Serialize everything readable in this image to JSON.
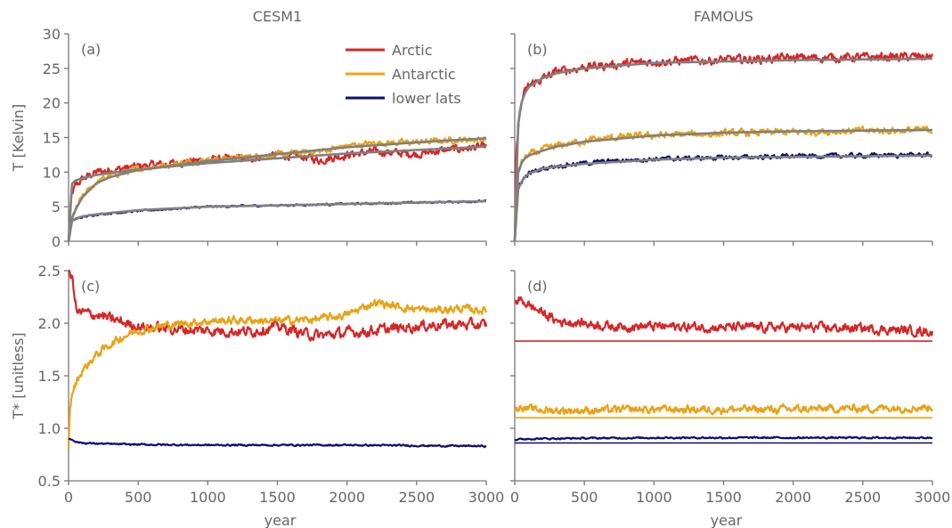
{
  "colors": {
    "arctic": "#d62728",
    "antarctic": "#e8a317",
    "lower_lats": "#0d0d73",
    "fit": "#808080",
    "axis": "#777777"
  },
  "legend": {
    "placement": "top-right of panel (a)",
    "entries": [
      {
        "label": "Arctic",
        "color_key": "arctic"
      },
      {
        "label": "Antarctic",
        "color_key": "antarctic"
      },
      {
        "label": "lower lats",
        "color_key": "lower_lats"
      }
    ]
  },
  "chart_data": [
    {
      "type": "line",
      "panel": "(a)",
      "title": "CESM1",
      "xlabel": "",
      "ylabel": "T  [Kelvin]",
      "xlim": [
        0,
        3000
      ],
      "ylim": [
        0,
        30
      ],
      "xticks": [
        0,
        500,
        1000,
        1500,
        2000,
        2500,
        3000
      ],
      "yticks": [
        0,
        5,
        10,
        15,
        20,
        25,
        30
      ],
      "series": [
        {
          "name": "Arctic",
          "color_key": "arctic",
          "noise": 0.45,
          "x": [
            0,
            20,
            50,
            100,
            200,
            300,
            500,
            700,
            1000,
            1300,
            1500,
            1700,
            1800,
            2000,
            2200,
            2500,
            2700,
            3000
          ],
          "y": [
            0,
            6.5,
            8,
            9,
            10,
            10.3,
            10.8,
            11.2,
            11.8,
            12,
            12.5,
            12.2,
            11.7,
            12.5,
            13,
            12.6,
            13.2,
            13.7
          ]
        },
        {
          "name": "Antarctic",
          "color_key": "antarctic",
          "noise": 0.35,
          "x": [
            0,
            20,
            50,
            100,
            200,
            300,
            500,
            700,
            1000,
            1300,
            1500,
            1800,
            2000,
            2200,
            2500,
            2700,
            3000
          ],
          "y": [
            0,
            3,
            4.5,
            6.5,
            8.5,
            9.5,
            10.5,
            11,
            11.8,
            12.2,
            12.5,
            13,
            13.8,
            14.2,
            14.3,
            14.6,
            14.8
          ]
        },
        {
          "name": "lower lats",
          "color_key": "lower_lats",
          "noise": 0.1,
          "x": [
            0,
            20,
            50,
            100,
            200,
            500,
            1000,
            1500,
            2000,
            2500,
            3000
          ],
          "y": [
            0,
            2.8,
            3.2,
            3.5,
            3.9,
            4.4,
            5,
            5.2,
            5.4,
            5.6,
            5.8
          ]
        },
        {
          "name": "",
          "color_key": "fit",
          "fit": true,
          "x": [
            0,
            10,
            30,
            60,
            100,
            200,
            500,
            1000,
            1500,
            2000,
            2500,
            3000
          ],
          "y": [
            0,
            7.5,
            8.6,
            8.9,
            9.1,
            9.6,
            10.4,
            11.3,
            12,
            12.7,
            13.2,
            13.7
          ]
        },
        {
          "name": "",
          "color_key": "fit",
          "fit": true,
          "x": [
            0,
            20,
            50,
            100,
            200,
            300,
            500,
            1000,
            1500,
            2000,
            2500,
            3000
          ],
          "y": [
            0,
            3,
            4.6,
            6.4,
            8.4,
            9.3,
            10.3,
            11.6,
            12.6,
            13.6,
            14.3,
            14.9
          ]
        },
        {
          "name": "",
          "color_key": "fit",
          "fit": true,
          "x": [
            0,
            20,
            50,
            100,
            200,
            500,
            1000,
            1500,
            2000,
            2500,
            3000
          ],
          "y": [
            0,
            2.9,
            3.3,
            3.6,
            3.9,
            4.5,
            5,
            5.2,
            5.4,
            5.6,
            5.8
          ]
        }
      ]
    },
    {
      "type": "line",
      "panel": "(b)",
      "title": "FAMOUS",
      "xlabel": "",
      "ylabel": "",
      "xlim": [
        0,
        3000
      ],
      "ylim": [
        0,
        30
      ],
      "xticks": [
        0,
        500,
        1000,
        1500,
        2000,
        2500,
        3000
      ],
      "yticks": [
        0,
        5,
        10,
        15,
        20,
        25,
        30
      ],
      "series": [
        {
          "name": "Arctic",
          "color_key": "arctic",
          "noise": 0.5,
          "x": [
            0,
            10,
            30,
            60,
            100,
            200,
            300,
            500,
            700,
            1000,
            1500,
            2000,
            2500,
            3000
          ],
          "y": [
            0,
            12,
            18,
            21,
            22.5,
            23.5,
            24.5,
            25.2,
            25.5,
            26,
            26.2,
            26.5,
            26.6,
            26.7
          ]
        },
        {
          "name": "Antarctic",
          "color_key": "antarctic",
          "noise": 0.4,
          "x": [
            0,
            10,
            30,
            60,
            100,
            200,
            300,
            500,
            700,
            1000,
            1500,
            2000,
            2500,
            3000
          ],
          "y": [
            0,
            8,
            10.5,
            11.8,
            12.5,
            13.2,
            13.8,
            14.5,
            15,
            15.3,
            15.6,
            15.8,
            16,
            16.1
          ]
        },
        {
          "name": "lower lats",
          "color_key": "lower_lats",
          "noise": 0.25,
          "x": [
            0,
            10,
            30,
            60,
            100,
            200,
            300,
            500,
            700,
            1000,
            1500,
            2000,
            2500,
            3000
          ],
          "y": [
            0,
            6,
            8,
            9,
            9.8,
            10.5,
            10.9,
            11.3,
            11.6,
            11.9,
            12.1,
            12.3,
            12.4,
            12.5
          ]
        },
        {
          "name": "",
          "color_key": "fit",
          "fit": true,
          "x": [
            0,
            10,
            30,
            60,
            100,
            200,
            300,
            500,
            1000,
            1500,
            2000,
            2500,
            3000
          ],
          "y": [
            0,
            12,
            18.5,
            21,
            22.3,
            23.6,
            24.3,
            25,
            25.8,
            26,
            26.2,
            26.3,
            26.4
          ]
        },
        {
          "name": "",
          "color_key": "fit",
          "fit": true,
          "x": [
            0,
            10,
            30,
            60,
            100,
            200,
            300,
            500,
            1000,
            1500,
            2000,
            2500,
            3000
          ],
          "y": [
            0,
            8,
            10.5,
            11.8,
            12.4,
            13.1,
            13.7,
            14.4,
            15.3,
            15.7,
            15.9,
            16,
            16.1
          ]
        },
        {
          "name": "",
          "color_key": "fit",
          "fit": true,
          "x": [
            0,
            10,
            30,
            60,
            100,
            200,
            300,
            500,
            1000,
            1500,
            2000,
            2500,
            3000
          ],
          "y": [
            0,
            6,
            8,
            9,
            9.8,
            10.5,
            10.8,
            11.2,
            11.8,
            12.1,
            12.2,
            12.3,
            12.4
          ]
        }
      ]
    },
    {
      "type": "line",
      "panel": "(c)",
      "title": "",
      "xlabel": "year",
      "ylabel": "T*   [unitless]",
      "xlim": [
        0,
        3000
      ],
      "ylim": [
        0.5,
        2.5
      ],
      "xticks": [
        0,
        500,
        1000,
        1500,
        2000,
        2500,
        3000
      ],
      "yticks": [
        0.5,
        1.0,
        1.5,
        2.0,
        2.5
      ],
      "series": [
        {
          "name": "Arctic",
          "color_key": "arctic",
          "noise": 0.04,
          "x": [
            0,
            30,
            60,
            100,
            200,
            300,
            500,
            700,
            1000,
            1300,
            1500,
            1700,
            1800,
            2000,
            2200,
            2500,
            2700,
            3000
          ],
          "y": [
            2.5,
            2.4,
            2.1,
            2.1,
            2.08,
            2.04,
            1.97,
            1.95,
            1.93,
            1.92,
            1.97,
            1.9,
            1.88,
            1.91,
            1.93,
            1.97,
            1.99,
            1.98
          ]
        },
        {
          "name": "Antarctic",
          "color_key": "antarctic",
          "noise": 0.03,
          "x": [
            0,
            10,
            30,
            60,
            100,
            200,
            300,
            400,
            500,
            700,
            1000,
            1300,
            1500,
            1800,
            2000,
            2200,
            2400,
            2600,
            2800,
            3000
          ],
          "y": [
            0.8,
            1.2,
            1.35,
            1.45,
            1.55,
            1.7,
            1.8,
            1.88,
            1.93,
            1.98,
            2.02,
            2.03,
            2.02,
            2.04,
            2.08,
            2.2,
            2.15,
            2.12,
            2.14,
            2.12
          ]
        },
        {
          "name": "lower lats",
          "color_key": "lower_lats",
          "noise": 0.006,
          "x": [
            0,
            30,
            60,
            100,
            300,
            500,
            1000,
            1500,
            2000,
            2500,
            3000
          ],
          "y": [
            0.9,
            0.89,
            0.87,
            0.86,
            0.85,
            0.845,
            0.84,
            0.84,
            0.84,
            0.835,
            0.83
          ]
        }
      ]
    },
    {
      "type": "line",
      "panel": "(d)",
      "title": "",
      "xlabel": "year",
      "ylabel": "",
      "xlim": [
        0,
        3000
      ],
      "ylim": [
        0.5,
        2.5
      ],
      "xticks": [
        0,
        500,
        1000,
        1500,
        2000,
        2500,
        3000
      ],
      "yticks": [
        0.5,
        1.0,
        1.5,
        2.0,
        2.5
      ],
      "series": [
        {
          "name": "Arctic",
          "color_key": "arctic",
          "noise": 0.035,
          "x": [
            0,
            50,
            100,
            200,
            300,
            500,
            700,
            1000,
            1500,
            2000,
            2500,
            3000
          ],
          "y": [
            2.2,
            2.22,
            2.17,
            2.1,
            2.02,
            2.0,
            1.97,
            1.97,
            1.96,
            1.96,
            1.95,
            1.92
          ]
        },
        {
          "name": "Antarctic",
          "color_key": "antarctic",
          "noise": 0.03,
          "x": [
            0,
            50,
            100,
            300,
            500,
            1000,
            1500,
            2000,
            2500,
            3000
          ],
          "y": [
            1.18,
            1.21,
            1.18,
            1.17,
            1.17,
            1.18,
            1.18,
            1.18,
            1.19,
            1.2
          ]
        },
        {
          "name": "lower lats",
          "color_key": "lower_lats",
          "noise": 0.006,
          "x": [
            0,
            50,
            100,
            500,
            1000,
            1500,
            2000,
            2500,
            3000
          ],
          "y": [
            0.89,
            0.895,
            0.9,
            0.905,
            0.91,
            0.91,
            0.91,
            0.91,
            0.91
          ]
        },
        {
          "name": "",
          "color_key": "arctic",
          "constant": true,
          "x": [
            0,
            3000
          ],
          "y": [
            1.83,
            1.83
          ]
        },
        {
          "name": "",
          "color_key": "antarctic",
          "constant": true,
          "x": [
            0,
            3000
          ],
          "y": [
            1.1,
            1.1
          ]
        },
        {
          "name": "",
          "color_key": "lower_lats",
          "constant": true,
          "x": [
            0,
            3000
          ],
          "y": [
            0.86,
            0.86
          ]
        }
      ]
    }
  ]
}
